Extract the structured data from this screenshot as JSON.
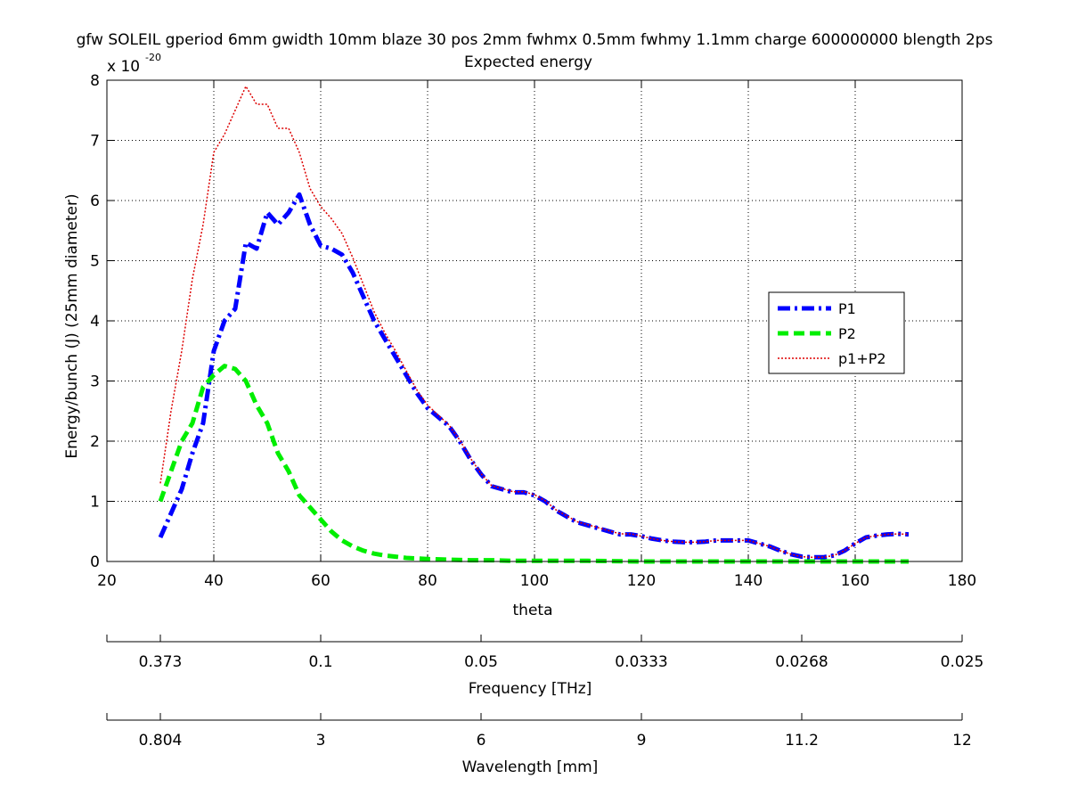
{
  "chart_data": {
    "type": "line",
    "title": "gfw SOLEIL gperiod 6mm gwidth 10mm blaze 30 pos 2mm fwhmx 0.5mm fwhmy 1.1mm charge 600000000 blength 2ps",
    "subtitle": "Expected energy",
    "xlabel": "theta",
    "ylabel": "Energy/bunch (J) (25mm diameter)",
    "y_multiplier_base": "x 10",
    "y_multiplier_exp": "-20",
    "xlim": [
      20,
      180
    ],
    "ylim": [
      0,
      8
    ],
    "xticks": [
      20,
      40,
      60,
      80,
      100,
      120,
      140,
      160,
      180
    ],
    "yticks": [
      0,
      1,
      2,
      3,
      4,
      5,
      6,
      7,
      8
    ],
    "grid": true,
    "legend_position": "right",
    "series": [
      {
        "name": "P1",
        "color": "#0000ff",
        "style": "dash-dot",
        "x": [
          30,
          32,
          34,
          36,
          38,
          40,
          42,
          44,
          46,
          48,
          50,
          52,
          54,
          56,
          58,
          60,
          62,
          64,
          66,
          68,
          70,
          72,
          74,
          76,
          78,
          80,
          82,
          84,
          86,
          88,
          90,
          92,
          94,
          96,
          98,
          100,
          102,
          104,
          106,
          108,
          110,
          112,
          114,
          116,
          118,
          120,
          122,
          124,
          126,
          128,
          130,
          132,
          134,
          136,
          138,
          140,
          142,
          144,
          146,
          148,
          150,
          152,
          154,
          156,
          158,
          160,
          162,
          164,
          166,
          168,
          170
        ],
        "y": [
          0.4,
          0.8,
          1.2,
          1.8,
          2.3,
          3.5,
          4.0,
          4.2,
          5.3,
          5.2,
          5.8,
          5.6,
          5.8,
          6.1,
          5.6,
          5.25,
          5.2,
          5.1,
          4.8,
          4.4,
          4.0,
          3.7,
          3.4,
          3.1,
          2.8,
          2.55,
          2.4,
          2.25,
          2.0,
          1.7,
          1.45,
          1.25,
          1.2,
          1.15,
          1.15,
          1.1,
          1.0,
          0.85,
          0.75,
          0.65,
          0.6,
          0.55,
          0.5,
          0.45,
          0.45,
          0.42,
          0.38,
          0.35,
          0.33,
          0.32,
          0.32,
          0.33,
          0.35,
          0.35,
          0.35,
          0.35,
          0.3,
          0.25,
          0.18,
          0.12,
          0.08,
          0.07,
          0.07,
          0.1,
          0.18,
          0.3,
          0.4,
          0.43,
          0.45,
          0.46,
          0.45
        ]
      },
      {
        "name": "P2",
        "color": "#00ee00",
        "style": "dashed",
        "x": [
          30,
          32,
          34,
          36,
          38,
          40,
          42,
          44,
          46,
          48,
          50,
          52,
          54,
          56,
          58,
          60,
          62,
          64,
          66,
          68,
          70,
          72,
          74,
          76,
          78,
          80,
          84,
          88,
          92,
          96,
          100,
          110,
          120,
          130,
          140,
          150,
          160,
          170
        ],
        "y": [
          1.0,
          1.5,
          2.0,
          2.3,
          2.9,
          3.1,
          3.25,
          3.2,
          3.0,
          2.6,
          2.3,
          1.8,
          1.5,
          1.1,
          0.9,
          0.7,
          0.5,
          0.35,
          0.25,
          0.18,
          0.13,
          0.1,
          0.08,
          0.06,
          0.05,
          0.04,
          0.03,
          0.02,
          0.02,
          0.01,
          0.01,
          0.01,
          0.0,
          0.0,
          0.0,
          0.0,
          0.0,
          0.0
        ]
      },
      {
        "name": "p1+P2",
        "color": "#dd0000",
        "style": "dotted",
        "x": [
          30,
          32,
          34,
          36,
          38,
          40,
          42,
          44,
          46,
          48,
          50,
          52,
          54,
          56,
          58,
          60,
          62,
          64,
          66,
          68,
          70,
          72,
          74,
          76,
          78,
          80,
          82,
          84,
          86,
          88,
          90,
          92,
          94,
          96,
          98,
          100,
          102,
          104,
          106,
          108,
          110,
          112,
          114,
          116,
          118,
          120,
          122,
          124,
          126,
          128,
          130,
          132,
          134,
          136,
          138,
          140,
          142,
          144,
          146,
          148,
          150,
          152,
          154,
          156,
          158,
          160,
          162,
          164,
          166,
          168,
          170
        ],
        "y": [
          1.3,
          2.5,
          3.5,
          4.7,
          5.6,
          6.8,
          7.1,
          7.5,
          7.9,
          7.6,
          7.6,
          7.2,
          7.2,
          6.8,
          6.2,
          5.9,
          5.7,
          5.45,
          5.05,
          4.6,
          4.15,
          3.8,
          3.5,
          3.17,
          2.85,
          2.6,
          2.43,
          2.27,
          2.02,
          1.72,
          1.46,
          1.26,
          1.21,
          1.16,
          1.16,
          1.11,
          1.01,
          0.86,
          0.76,
          0.66,
          0.61,
          0.56,
          0.51,
          0.46,
          0.46,
          0.42,
          0.38,
          0.35,
          0.33,
          0.32,
          0.32,
          0.33,
          0.35,
          0.35,
          0.35,
          0.35,
          0.3,
          0.25,
          0.18,
          0.12,
          0.08,
          0.07,
          0.07,
          0.1,
          0.18,
          0.3,
          0.4,
          0.43,
          0.45,
          0.46,
          0.45
        ]
      }
    ],
    "secondary_axes": [
      {
        "label": "Frequency [THz]",
        "tick_labels": [
          "0.373",
          "0.1",
          "0.05",
          "0.0333",
          "0.0268",
          "0.025"
        ],
        "at_theta": [
          30,
          60,
          90,
          120,
          150,
          180
        ]
      },
      {
        "label": "Wavelength [mm]",
        "tick_labels": [
          "0.804",
          "3",
          "6",
          "9",
          "11.2",
          "12"
        ],
        "at_theta": [
          30,
          60,
          90,
          120,
          150,
          180
        ]
      }
    ]
  }
}
